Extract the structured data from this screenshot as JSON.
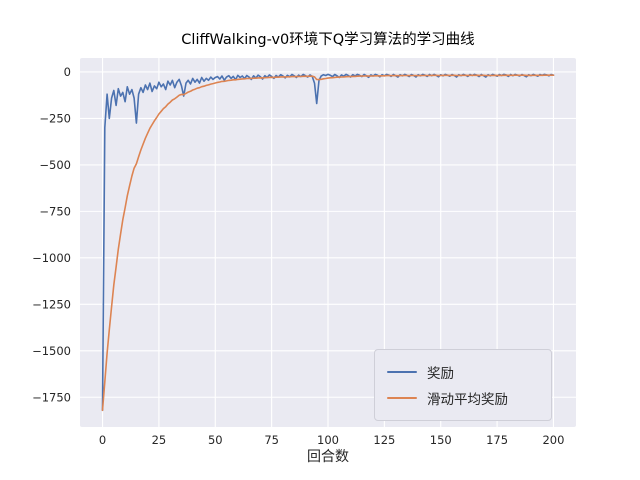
{
  "chart_data": {
    "type": "line",
    "title": "CliffWalking-v0环境下Q学习算法的学习曲线",
    "xlabel": "回合数",
    "ylabel": "",
    "xlim": [
      -10,
      210
    ],
    "ylim": [
      -1910,
      75
    ],
    "xticks": [
      0,
      25,
      50,
      75,
      100,
      125,
      150,
      175,
      200
    ],
    "yticks": [
      0,
      -250,
      -500,
      -750,
      -1000,
      -1250,
      -1500,
      -1750
    ],
    "grid": true,
    "plot_bg": "#EAEAF2",
    "grid_color": "#FFFFFF",
    "legend_position": "lower right",
    "series": [
      {
        "name": "奖励",
        "color": "#4C72B0",
        "x_start": 0,
        "x_step": 1,
        "values": [
          -1820,
          -300,
          -120,
          -250,
          -140,
          -100,
          -180,
          -90,
          -130,
          -110,
          -160,
          -80,
          -120,
          -95,
          -140,
          -275,
          -120,
          -85,
          -110,
          -70,
          -95,
          -60,
          -105,
          -75,
          -90,
          -55,
          -80,
          -65,
          -95,
          -50,
          -70,
          -45,
          -85,
          -55,
          -40,
          -75,
          -130,
          -60,
          -45,
          -65,
          -35,
          -55,
          -40,
          -60,
          -30,
          -50,
          -35,
          -45,
          -28,
          -40,
          -30,
          -25,
          -38,
          -22,
          -45,
          -28,
          -20,
          -35,
          -24,
          -42,
          -18,
          -30,
          -22,
          -36,
          -19,
          -28,
          -40,
          -21,
          -33,
          -17,
          -26,
          -38,
          -20,
          -30,
          -16,
          -24,
          -35,
          -19,
          -28,
          -15,
          -22,
          -32,
          -18,
          -26,
          -14,
          -21,
          -30,
          -17,
          -25,
          -13,
          -20,
          -28,
          -16,
          -24,
          -60,
          -170,
          -45,
          -22,
          -15,
          -19,
          -13,
          -18,
          -25,
          -14,
          -21,
          -30,
          -16,
          -23,
          -13,
          -19,
          -27,
          -15,
          -22,
          -13,
          -18,
          -25,
          -14,
          -20,
          -29,
          -16,
          -22,
          -13,
          -18,
          -26,
          -15,
          -21,
          -13,
          -17,
          -24,
          -14,
          -20,
          -28,
          -15,
          -21,
          -13,
          -18,
          -25,
          -14,
          -19,
          -27,
          -15,
          -21,
          -13,
          -17,
          -24,
          -14,
          -20,
          -13,
          -18,
          -26,
          -15,
          -21,
          -13,
          -17,
          -23,
          -14,
          -19,
          -27,
          -15,
          -20,
          -13,
          -17,
          -24,
          -14,
          -19,
          -13,
          -17,
          -25,
          -14,
          -20,
          -28,
          -15,
          -21,
          -13,
          -17,
          -23,
          -14,
          -19,
          -13,
          -16,
          -24,
          -14,
          -20,
          -13,
          -17,
          -22,
          -14,
          -19,
          -26,
          -15,
          -20,
          -13,
          -17,
          -23,
          -14,
          -18,
          -13,
          -16,
          -21,
          -14,
          -17
        ]
      },
      {
        "name": "滑动平均奖励",
        "color": "#DD8452",
        "x_start": 0,
        "x_step": 1,
        "values": [
          -1820,
          -1668,
          -1513.2,
          -1386.9,
          -1262.2,
          -1146,
          -1049.4,
          -953.5,
          -871.1,
          -795,
          -731.5,
          -666.4,
          -611.7,
          -560,
          -518,
          -493.7,
          -456.3,
          -419.2,
          -388.3,
          -356.4,
          -330.3,
          -303.3,
          -283.4,
          -262.6,
          -245.3,
          -226.3,
          -211.7,
          -197,
          -186.8,
          -173.1,
          -162.8,
          -151,
          -144.4,
          -135.5,
          -125.9,
          -120.8,
          -121.7,
          -115.5,
          -108.5,
          -104.1,
          -97.2,
          -93,
          -87.7,
          -84.9,
          -79.4,
          -76.5,
          -72.3,
          -69.6,
          -65.4,
          -62.9,
          -59.6,
          -56.1,
          -54.3,
          -51.1,
          -50.5,
          -48.2,
          -45.4,
          -44.4,
          -42.4,
          -42.4,
          -39.9,
          -38.9,
          -37.2,
          -37.1,
          -35.3,
          -34.6,
          -35.1,
          -33.7,
          -33.6,
          -31.9,
          -31.3,
          -32,
          -30.8,
          -30.7,
          -29.2,
          -28.7,
          -29.3,
          -28.3,
          -28.3,
          -26.9,
          -26.4,
          -27,
          -26.1,
          -26.1,
          -24.9,
          -24.5,
          -25,
          -24.2,
          -24.3,
          -23.2,
          -22.9,
          -23.4,
          -22.7,
          -22.8,
          -26.5,
          -40.9,
          -41.3,
          -39.4,
          -37,
          -35.2,
          -33,
          -31.5,
          -30.8,
          -29.1,
          -28.3,
          -28.5,
          -27.2,
          -26.8,
          -25.4,
          -24.8,
          -25,
          -24,
          -23.8,
          -22.7,
          -22.2,
          -22.5,
          -21.7,
          -21.5,
          -22.3,
          -21.7,
          -21.7,
          -20.8,
          -20.5,
          -21.1,
          -20.5,
          -20.6,
          -19.8,
          -19.5,
          -20,
          -19.4,
          -19.5,
          -20.3,
          -19.8,
          -19.9,
          -19.2,
          -19.1,
          -19.7,
          -19.1,
          -19.1,
          -19.9,
          -19.4,
          -19.6,
          -18.9,
          -18.7,
          -19.2,
          -18.7,
          -18.8,
          -18.2,
          -18.2,
          -19,
          -18.6,
          -18.8,
          -18.2,
          -18.1,
          -18.6,
          -18.1,
          -18.2,
          -19.1,
          -18.7,
          -18.8,
          -18.2,
          -18.1,
          -18.7,
          -18.2,
          -18.3,
          -17.8,
          -17.7,
          -18.4,
          -18,
          -18.2,
          -19.2,
          -18.8,
          -19,
          -18.4,
          -18.3,
          -18.8,
          -18.3,
          -18.4,
          -17.9,
          -17.7,
          -18.3,
          -17.9,
          -18.1,
          -17.6,
          -17.5,
          -18,
          -17.6,
          -17.7,
          -18.5,
          -18.2,
          -18.4,
          -17.9,
          -17.8,
          -18.3,
          -17.9,
          -17.9,
          -17.4,
          -17.3,
          -17.7,
          -17.3,
          -17.3
        ]
      }
    ]
  }
}
